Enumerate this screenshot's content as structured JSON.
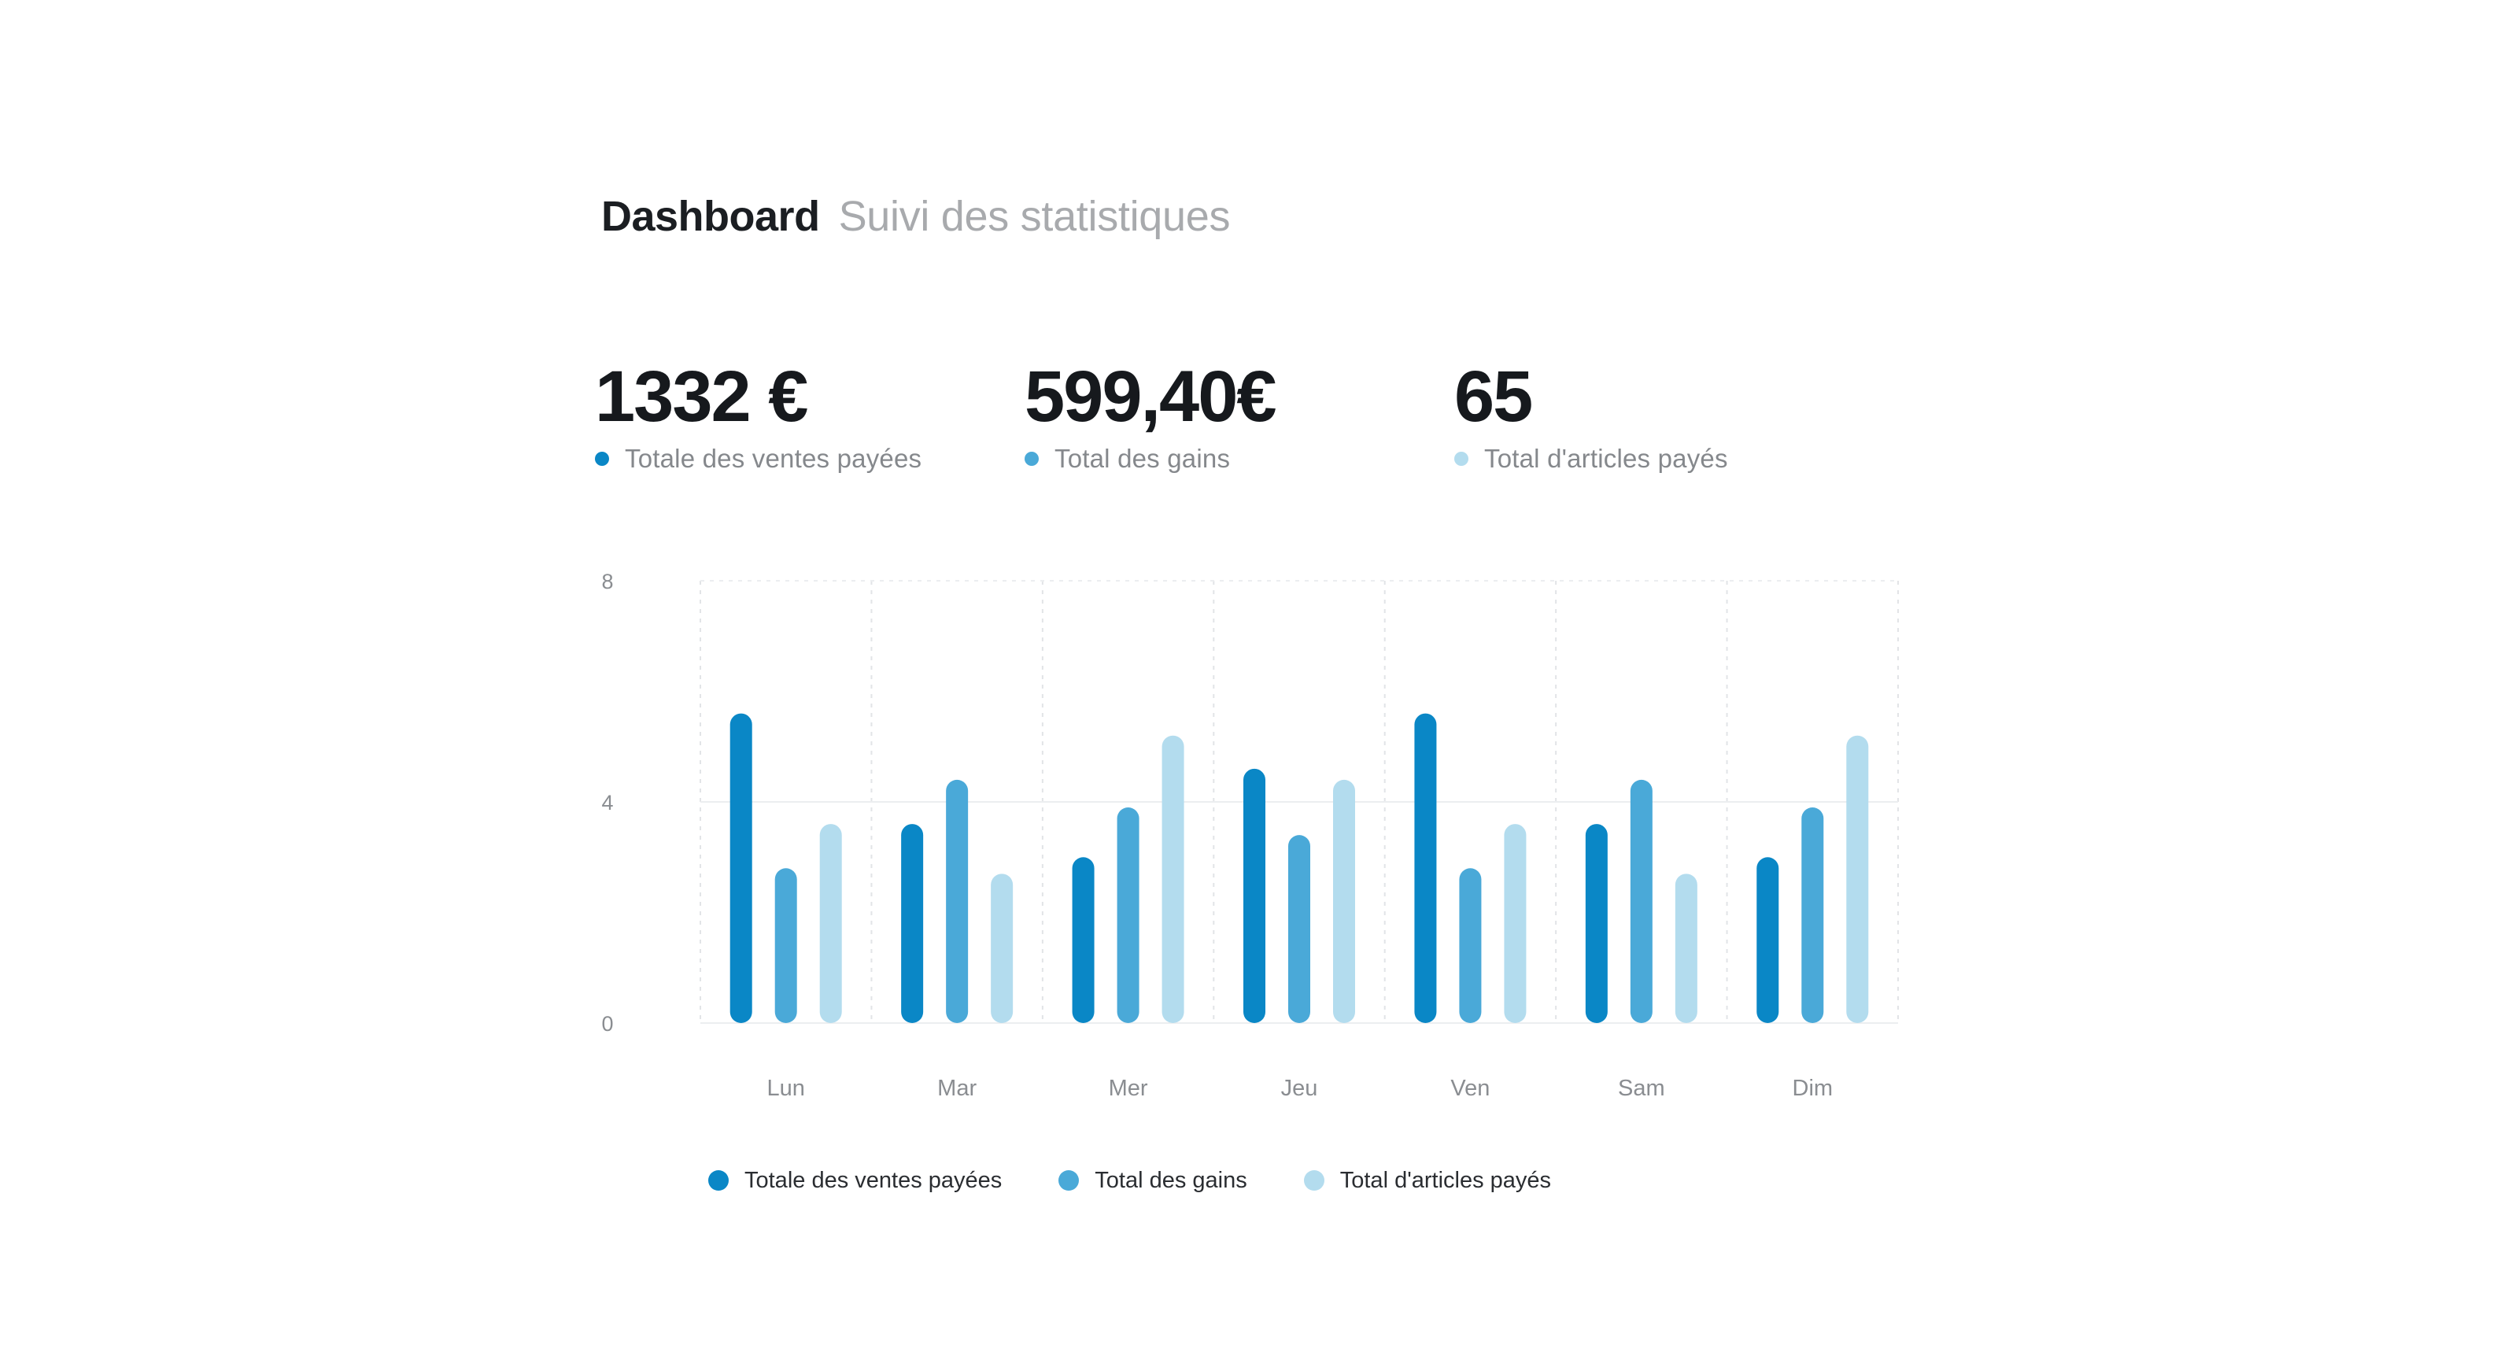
{
  "header": {
    "title": "Dashboard",
    "subtitle": "Suivi des statistiques"
  },
  "kpis": [
    {
      "value": "1332 €",
      "label": "Totale des ventes payées",
      "color": "#0a87c6"
    },
    {
      "value": "599,40€",
      "label": "Total des gains",
      "color": "#4aa9d8"
    },
    {
      "value": "65",
      "label": "Total d'articles payés",
      "color": "#b3dcee"
    }
  ],
  "chart_data": {
    "type": "bar",
    "categories": [
      "Lun",
      "Mar",
      "Mer",
      "Jeu",
      "Ven",
      "Sam",
      "Dim"
    ],
    "series": [
      {
        "name": "Totale des ventes payées",
        "color": "#0a87c6",
        "values": [
          5.6,
          3.6,
          3.0,
          4.6,
          5.6,
          3.6,
          3.0
        ]
      },
      {
        "name": "Total des gains",
        "color": "#4aa9d8",
        "values": [
          2.8,
          4.4,
          3.9,
          3.4,
          2.8,
          4.4,
          3.9
        ]
      },
      {
        "name": "Total d'articles payés",
        "color": "#b3dcee",
        "values": [
          3.6,
          2.7,
          5.2,
          4.4,
          3.6,
          2.7,
          5.2
        ]
      }
    ],
    "yticks": [
      0,
      4,
      8
    ],
    "ylim": [
      0,
      8
    ],
    "grid": true,
    "legend_position": "bottom"
  }
}
